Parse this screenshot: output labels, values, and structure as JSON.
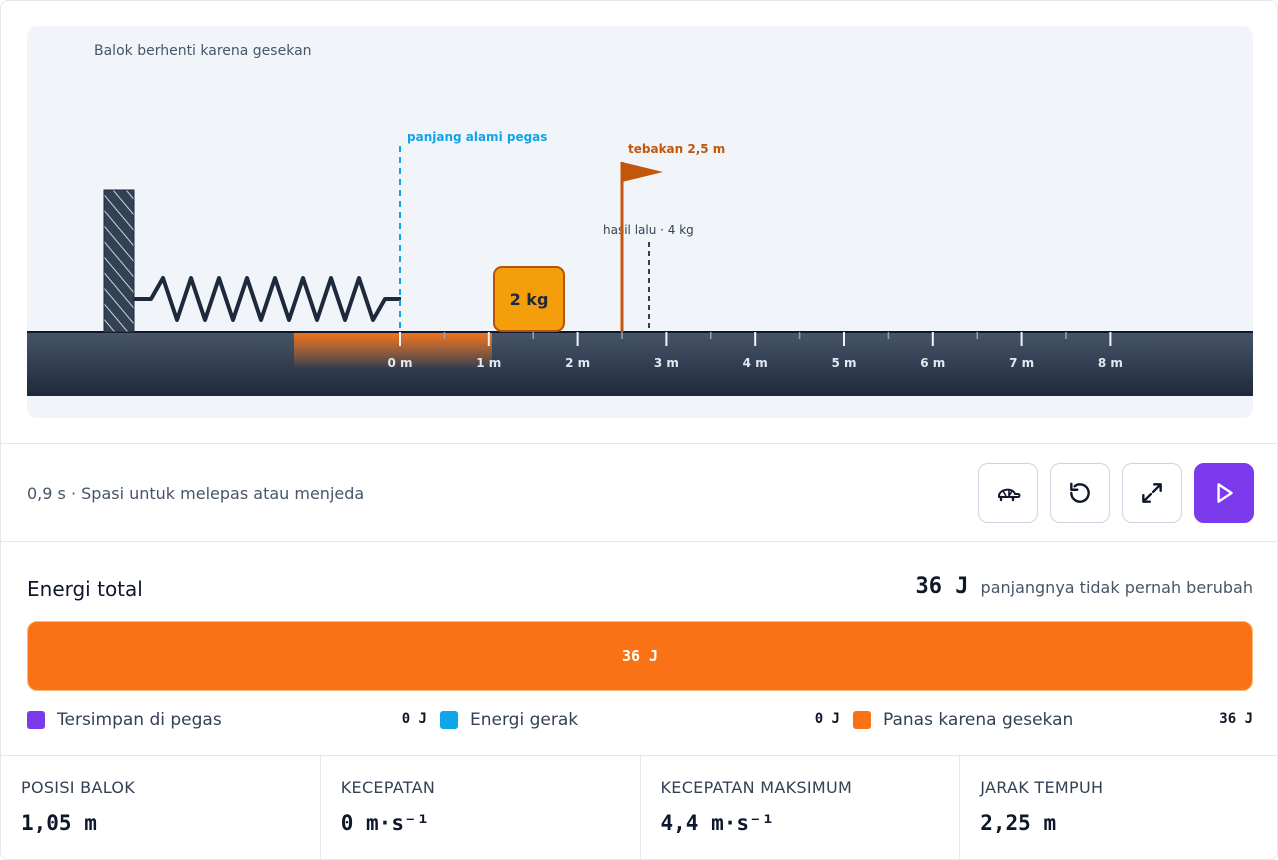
{
  "simulation": {
    "caption": "Balok berhenti karena gesekan",
    "spring_label": "panjang alami pegas",
    "guess_label": "tebakan 2,5 m",
    "previous_label": "hasil lalu · 4 kg",
    "block_label": "2 kg",
    "ruler_ticks": [
      "0 m",
      "1 m",
      "2 m",
      "3 m",
      "4 m",
      "5 m",
      "6 m",
      "7 m",
      "8 m"
    ],
    "block_position_m": 1.05,
    "guess_position_m": 2.5,
    "previous_position_m": 2.8
  },
  "controls": {
    "status": "0,9 s · Spasi untuk melepas atau menjeda",
    "buttons": [
      {
        "name": "slow-motion-button",
        "icon": "turtle-icon"
      },
      {
        "name": "reset-button",
        "icon": "rotate-ccw-icon"
      },
      {
        "name": "fullscreen-button",
        "icon": "maximize-icon"
      },
      {
        "name": "play-button",
        "icon": "play-icon"
      }
    ]
  },
  "energy": {
    "title": "Energi total",
    "total_value": "36 J",
    "total_note": "panjangnya tidak pernah berubah",
    "bar_label": "36 J",
    "legend": [
      {
        "label": "Tersimpan di pegas",
        "value": "0 J",
        "color": "#7c3aed"
      },
      {
        "label": "Energi gerak",
        "value": "0 J",
        "color": "#0ea5e9"
      },
      {
        "label": "Panas karena gesekan",
        "value": "36 J",
        "color": "#f97316"
      }
    ]
  },
  "stats": [
    {
      "label": "POSISI BALOK",
      "value": "1,05 m"
    },
    {
      "label": "KECEPATAN",
      "value": "0 m·s⁻¹"
    },
    {
      "label": "KECEPATAN MAKSIMUM",
      "value": "4,4 m·s⁻¹"
    },
    {
      "label": "JARAK TEMPUH",
      "value": "2,25 m"
    }
  ],
  "colors": {
    "accent": "#7c3aed",
    "spring_line": "#0ea5e9",
    "guess_flag": "#c2570c",
    "block": "#f59e0b",
    "friction": "#f97316"
  }
}
